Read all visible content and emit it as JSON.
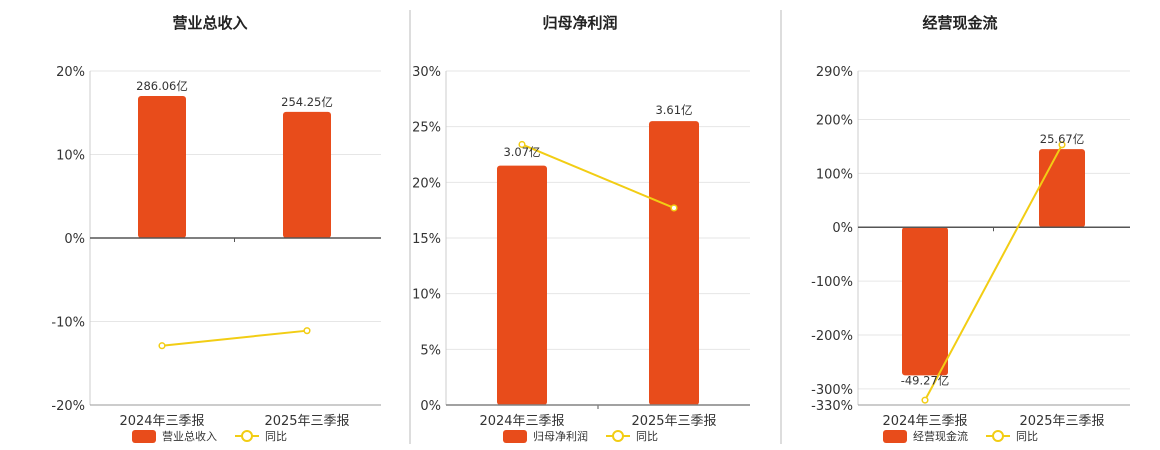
{
  "colors": {
    "bar": "#E84C1B",
    "line": "#F2CD14",
    "grid": "#E6E6E6",
    "axis": "#555555",
    "divider": "#BBBBBB"
  },
  "legend": {
    "yoy_label": "同比"
  },
  "chart_data": [
    {
      "type": "bar",
      "title": "营业总收入",
      "categories": [
        "2024年三季报",
        "2025年三季报"
      ],
      "series": [
        {
          "name": "营业总收入",
          "kind": "bar",
          "values": [
            286.06,
            254.25
          ],
          "value_labels": [
            "286.06亿",
            "254.25亿"
          ],
          "bar_axis_pct": [
            17.0,
            15.1
          ]
        },
        {
          "name": "同比",
          "kind": "line",
          "values": [
            -12.9,
            -11.1
          ]
        }
      ],
      "y_ticks": [
        "20%",
        "10%",
        "0%",
        "-10%",
        "-20%"
      ],
      "ylim": [
        -20,
        20
      ],
      "grid": true,
      "legend_position": "bottom"
    },
    {
      "type": "bar",
      "title": "归母净利润",
      "categories": [
        "2024年三季报",
        "2025年三季报"
      ],
      "series": [
        {
          "name": "归母净利润",
          "kind": "bar",
          "values": [
            3.07,
            3.61
          ],
          "value_labels": [
            "3.07亿",
            "3.61亿"
          ],
          "bar_axis_pct": [
            21.5,
            25.5
          ]
        },
        {
          "name": "同比",
          "kind": "line",
          "values": [
            23.4,
            17.7
          ]
        }
      ],
      "y_ticks": [
        "30%",
        "25%",
        "20%",
        "15%",
        "10%",
        "5%",
        "0%"
      ],
      "ylim": [
        0,
        30
      ],
      "grid": true,
      "legend_position": "bottom"
    },
    {
      "type": "bar",
      "title": "经营现金流",
      "categories": [
        "2024年三季报",
        "2025年三季报"
      ],
      "series": [
        {
          "name": "经营现金流",
          "kind": "bar",
          "values": [
            -49.27,
            25.67
          ],
          "value_labels": [
            "-49.27亿",
            "25.67亿"
          ],
          "bar_axis_pct": [
            -275,
            145
          ]
        },
        {
          "name": "同比",
          "kind": "line",
          "values": [
            -321,
            153
          ]
        }
      ],
      "y_ticks": [
        "290%",
        "200%",
        "100%",
        "0%",
        "-100%",
        "-200%",
        "-300%",
        "-330%"
      ],
      "ylim": [
        -330,
        290
      ],
      "grid": true,
      "legend_position": "bottom"
    }
  ]
}
